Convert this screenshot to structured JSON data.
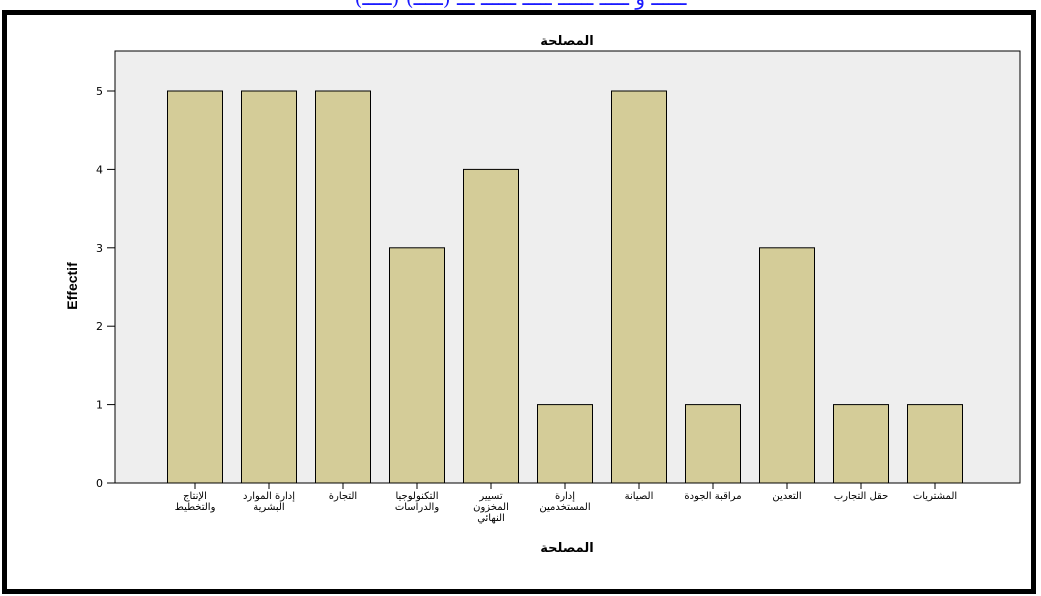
{
  "header": {
    "partial_text": "(ـــــ) ــــــ و ـــــ ــــــ ـــــ ــــــ ـــ (ـــــ)"
  },
  "colors": {
    "bar_fill": "#d4cc98",
    "bar_stroke": "#000000",
    "plot_background": "#eeeeee",
    "frame_border": "#000000",
    "header_text": "#1a1aff"
  },
  "chart_data": {
    "type": "bar",
    "title": "المصلحة",
    "xlabel": "المصلحة",
    "ylabel": "Effectif",
    "ylim": [
      0,
      5
    ],
    "yticks": [
      0,
      1,
      2,
      3,
      4,
      5
    ],
    "grid": false,
    "categories": [
      "الإنتاج والتخطيط",
      "إدارة الموارد البشرية",
      "التجارة",
      "التكنولوجيا والدراسات",
      "تسيير المخزون النهائي",
      "إدارة المستخدمين",
      "الصيانة",
      "مراقبة الجودة",
      "التعدين",
      "حقل التجارب",
      "المشتريات"
    ],
    "category_lines": [
      [
        "الإنتاج",
        "والتخطيط"
      ],
      [
        "إدارة الموارد",
        "البشرية"
      ],
      [
        "التجارة"
      ],
      [
        "التكنولوجيا",
        "والدراسات"
      ],
      [
        "تسيير",
        "المخزون",
        "النهائي"
      ],
      [
        "إدارة",
        "المستخدمين"
      ],
      [
        "الصيانة"
      ],
      [
        "مراقبة الجودة"
      ],
      [
        "التعدين"
      ],
      [
        "حقل التجارب"
      ],
      [
        "المشتريات"
      ]
    ],
    "values": [
      5,
      5,
      5,
      3,
      4,
      1,
      5,
      1,
      3,
      1,
      1
    ]
  }
}
